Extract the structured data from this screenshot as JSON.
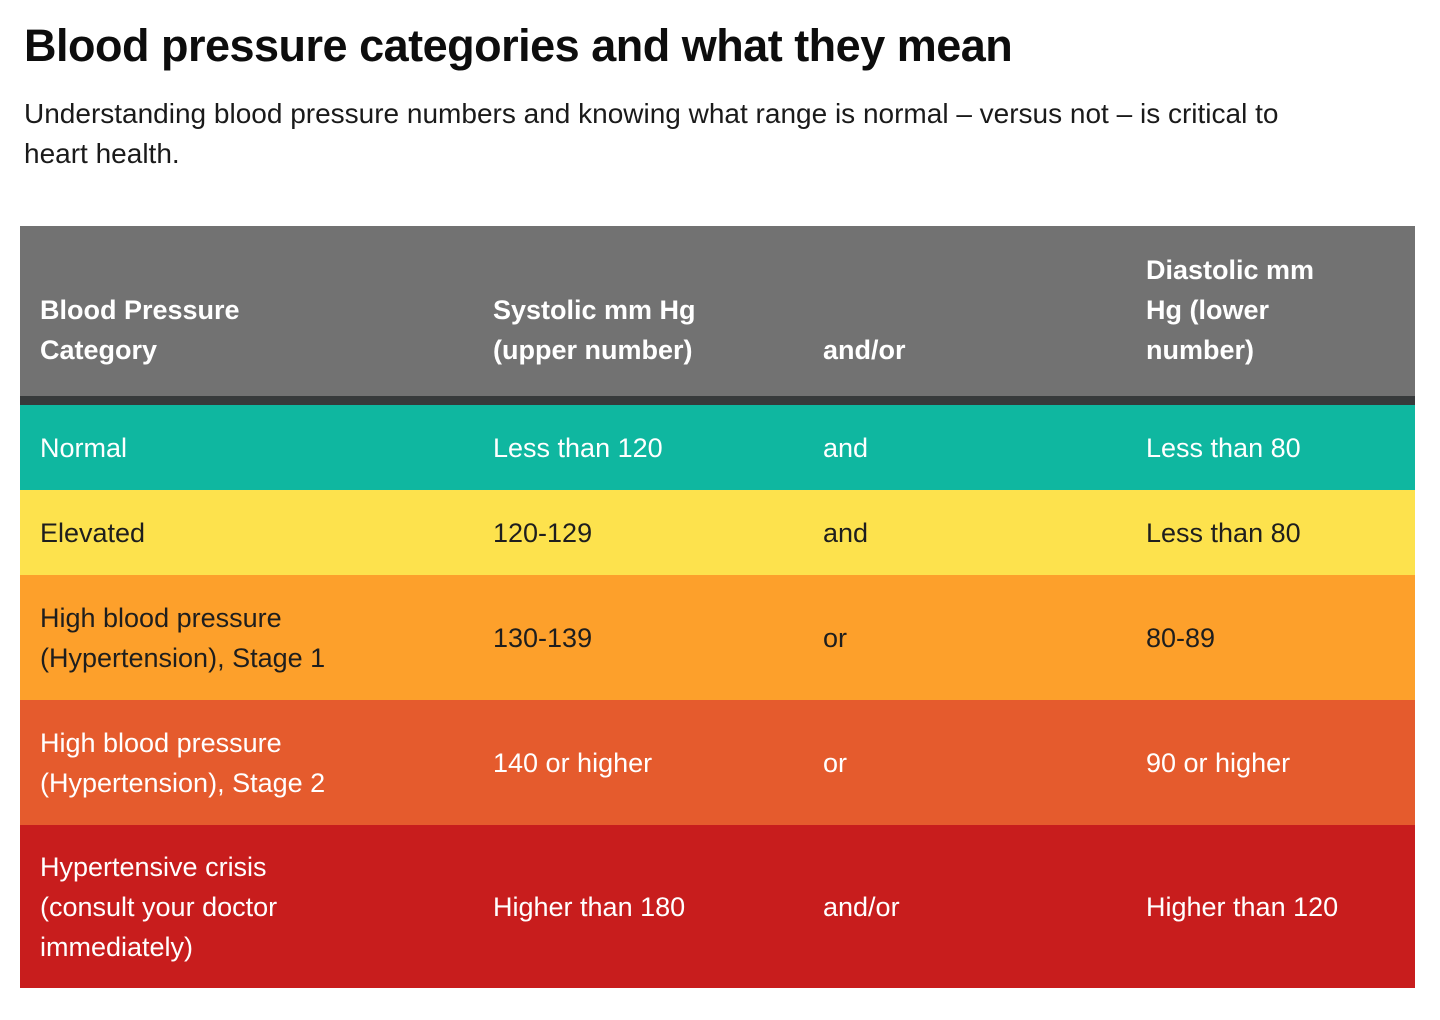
{
  "page": {
    "title": "Blood pressure categories and what they mean",
    "subtitle": "Understanding blood pressure numbers and knowing what range is normal – versus not – is critical to heart health."
  },
  "table": {
    "header_bg": "#727272",
    "header_text_color": "#ffffff",
    "divider_color": "#373a3b",
    "columns": [
      "Blood Pressure Category",
      "Systolic mm Hg (upper number)",
      "and/or",
      "Diastolic mm Hg (lower number)"
    ],
    "rows": [
      {
        "category": "Normal",
        "systolic": "Less than 120",
        "connector": "and",
        "diastolic": "Less than 80",
        "color": "#0fb7a0",
        "text_color": "#ffffff"
      },
      {
        "category": "Elevated",
        "systolic": "120-129",
        "connector": "and",
        "diastolic": "Less than 80",
        "color": "#fde24d",
        "text_color": "#1e1e1e"
      },
      {
        "category": "High blood pressure (Hypertension), Stage 1",
        "systolic": "130-139",
        "connector": "or",
        "diastolic": "80-89",
        "color": "#fda02b",
        "text_color": "#1e1e1e"
      },
      {
        "category": "High blood pressure (Hypertension), Stage 2",
        "systolic": "140 or higher",
        "connector": "or",
        "diastolic": "90 or higher",
        "color": "#e55b2d",
        "text_color": "#ffffff"
      },
      {
        "category": "Hypertensive crisis (consult your doctor immediately)",
        "systolic": "Higher than 180",
        "connector": "and/or",
        "diastolic": "Higher than 120",
        "color": "#c81d1d",
        "text_color": "#ffffff"
      }
    ]
  }
}
